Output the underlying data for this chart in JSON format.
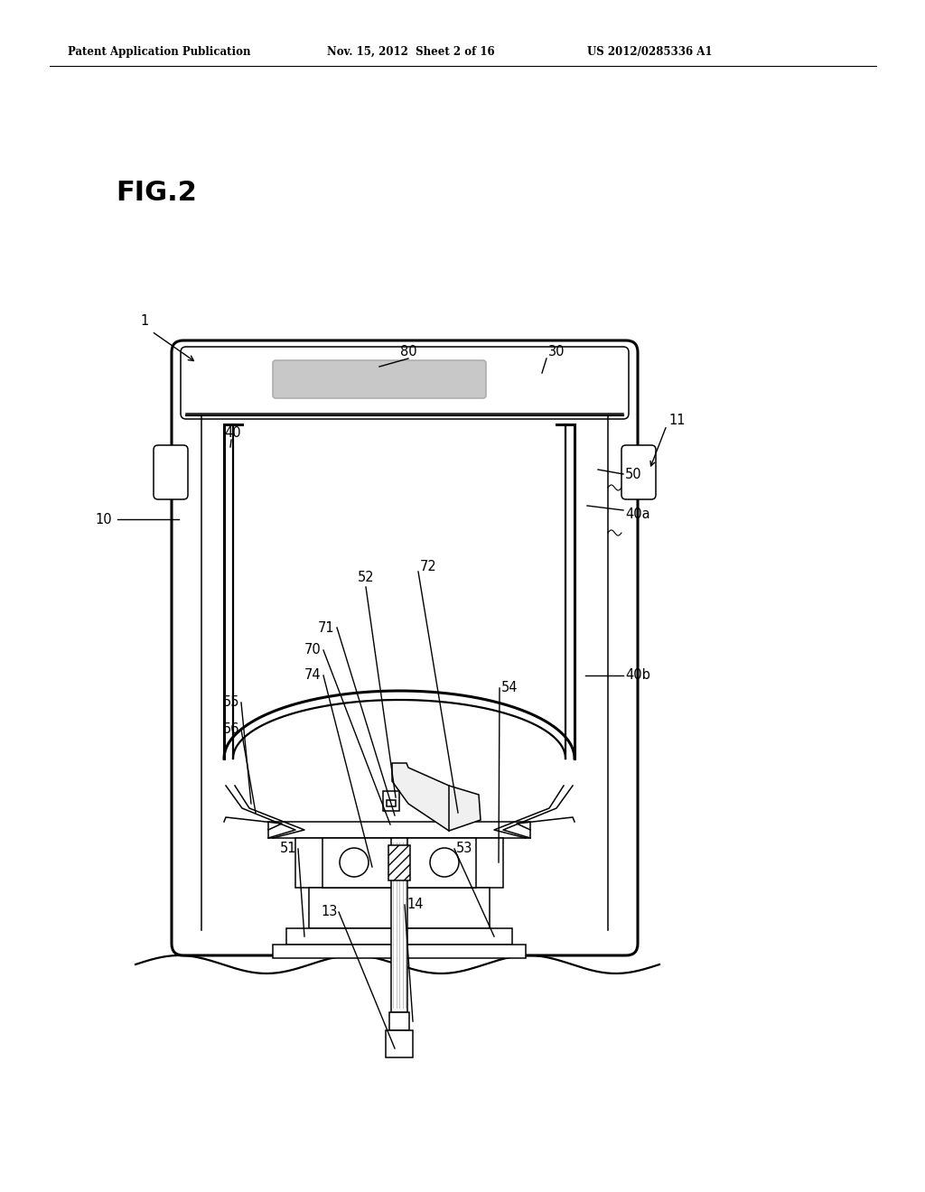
{
  "bg_color": "#ffffff",
  "header_left": "Patent Application Publication",
  "header_mid": "Nov. 15, 2012  Sheet 2 of 16",
  "header_right": "US 2012/0285336 A1",
  "fig_label": "FIG.2",
  "line_color": "#000000",
  "gray_fill": "#c8c8c8"
}
